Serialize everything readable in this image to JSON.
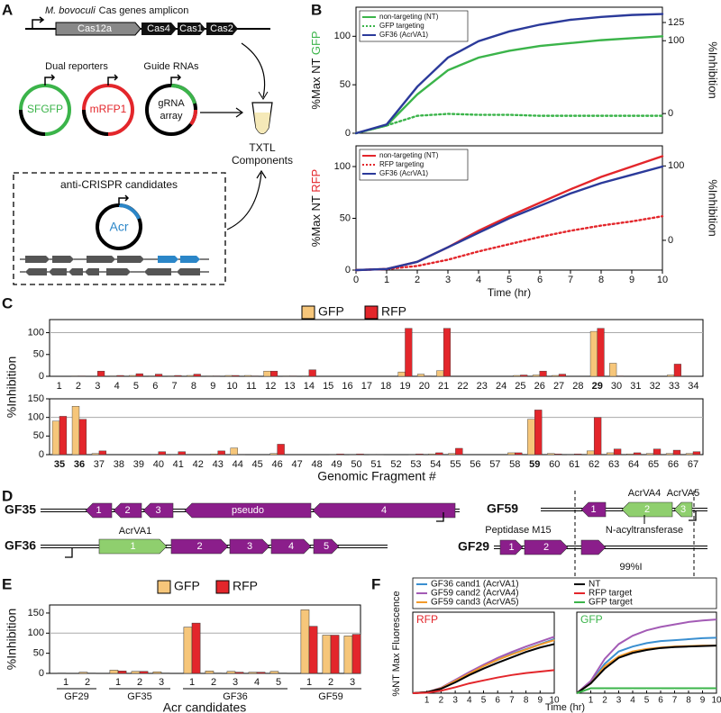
{
  "panel_labels": [
    "A",
    "B",
    "C",
    "D",
    "E",
    "F"
  ],
  "panel_a": {
    "amplicon_species": "M. bovoculi",
    "amplicon_title": "Cas genes amplicon",
    "genes": [
      "Cas12a",
      "Cas4",
      "Cas1",
      "Cas2"
    ],
    "reporters_label": "Dual reporters",
    "guides_label": "Guide RNAs",
    "plasmids": [
      "SFGFP",
      "mRFP1"
    ],
    "grna": [
      "gRNA",
      "array"
    ],
    "txtl": [
      "TXTL",
      "Components"
    ],
    "candidates_label": "anti-CRISPR candidates",
    "acr": "Acr"
  },
  "panel_d": {
    "clusters": [
      {
        "label": "GF35",
        "genes": [
          "1",
          "2",
          "3",
          "pseudo",
          "4"
        ]
      },
      {
        "label": "GF36",
        "genes": [
          "1",
          "2",
          "3",
          "4",
          "5"
        ],
        "annotations": [
          "AcrVA1"
        ]
      },
      {
        "label": "GF59",
        "genes": [
          "1",
          "2",
          "3"
        ],
        "annotations": [
          "AcrVA4",
          "AcrVA5",
          "N-acyltransferase"
        ]
      },
      {
        "label": "GF29",
        "genes": [
          "1",
          "2"
        ],
        "annotations": [
          "Peptidase M15",
          "99%I"
        ]
      }
    ]
  },
  "chart_data": [
    {
      "type": "line",
      "ylabel": {
        "text": "%Max NT ",
        "highlight": "GFP",
        "highlight_color": "#3bb44a"
      },
      "y2label": "%Inhibition",
      "x": [
        0,
        1,
        2,
        3,
        4,
        5,
        6,
        7,
        8,
        9,
        10
      ],
      "xlim": [
        0,
        10
      ],
      "ylim": [
        0,
        130
      ],
      "yticks": [
        0,
        50,
        100
      ],
      "y2lim": [
        -27,
        146
      ],
      "y2ticks": [
        0,
        100,
        125
      ],
      "legend": "upper left",
      "series": [
        {
          "name": "non-targeting (NT)",
          "color": "#3bb44a",
          "style": "solid",
          "values": [
            0,
            8,
            40,
            65,
            78,
            85,
            90,
            93,
            96,
            98,
            100
          ]
        },
        {
          "name": "GFP targeting",
          "color": "#3bb44a",
          "style": "dotted",
          "values": [
            0,
            8,
            18,
            20,
            19,
            19,
            18,
            18,
            18,
            18,
            18
          ]
        },
        {
          "name": "GF36 (AcrVA1)",
          "color": "#2b3a9a",
          "style": "solid",
          "values": [
            0,
            9,
            48,
            78,
            95,
            105,
            112,
            117,
            120,
            122,
            123
          ]
        }
      ]
    },
    {
      "type": "line",
      "ylabel": {
        "text": "%Max NT ",
        "highlight": "RFP",
        "highlight_color": "#e3262b"
      },
      "y2label": "%Inhibition",
      "xlabel": "Time (hr)",
      "x": [
        0,
        1,
        2,
        3,
        4,
        5,
        6,
        7,
        8,
        9,
        10
      ],
      "xlim": [
        0,
        10
      ],
      "xticks": [
        0,
        1,
        2,
        3,
        4,
        5,
        6,
        7,
        8,
        9,
        10
      ],
      "ylim": [
        0,
        120
      ],
      "yticks": [
        0,
        50,
        100
      ],
      "y2lim": [
        -40,
        127
      ],
      "y2ticks": [
        0,
        100
      ],
      "legend": "upper left",
      "series": [
        {
          "name": "non-targeting (NT)",
          "color": "#e3262b",
          "style": "solid",
          "values": [
            0,
            1,
            8,
            22,
            38,
            52,
            65,
            78,
            90,
            100,
            110
          ]
        },
        {
          "name": "RFP targeting",
          "color": "#e3262b",
          "style": "dotted",
          "values": [
            0,
            1,
            4,
            10,
            18,
            25,
            32,
            38,
            43,
            47,
            52
          ]
        },
        {
          "name": "GF36 (AcrVA1)",
          "color": "#2b3a9a",
          "style": "solid",
          "values": [
            0,
            1,
            8,
            22,
            36,
            50,
            62,
            74,
            84,
            92,
            100
          ]
        }
      ]
    },
    {
      "type": "bar",
      "series_names": [
        "GFP",
        "RFP"
      ],
      "colors": [
        "#f6c67a",
        "#e3262b"
      ],
      "ylabel": "%Inhibition",
      "xlabel": "Genomic Fragment #",
      "refline": 100,
      "rows": [
        {
          "categories": [
            "1",
            "2",
            "3",
            "4",
            "5",
            "6",
            "7",
            "8",
            "9",
            "10",
            "11",
            "12",
            "13",
            "14",
            "15",
            "16",
            "17",
            "18",
            "19",
            "20",
            "21",
            "22",
            "23",
            "24",
            "25",
            "26",
            "27",
            "28",
            "29",
            "30",
            "31",
            "32",
            "33",
            "34"
          ],
          "ylim": [
            0,
            130
          ],
          "yticks": [
            0,
            50,
            100
          ],
          "bold_indices": [
            28
          ],
          "values": [
            [
              0,
              1,
              0,
              1,
              2,
              1,
              1,
              2,
              1,
              2,
              2,
              12,
              1,
              1,
              0,
              0,
              0,
              0,
              10,
              5,
              13,
              0,
              0,
              0,
              2,
              3,
              2,
              0,
              103,
              30,
              0,
              0,
              3,
              0
            ],
            [
              0,
              1,
              12,
              2,
              6,
              5,
              2,
              5,
              1,
              2,
              1,
              12,
              1,
              15,
              0,
              0,
              0,
              0,
              110,
              1,
              110,
              0,
              0,
              0,
              3,
              12,
              5,
              0,
              110,
              1,
              0,
              0,
              28,
              0
            ]
          ]
        },
        {
          "categories": [
            "35",
            "36",
            "37",
            "38",
            "39",
            "40",
            "41",
            "42",
            "43",
            "44",
            "45",
            "46",
            "47",
            "48",
            "49",
            "50",
            "51",
            "52",
            "53",
            "54",
            "55",
            "56",
            "57",
            "58",
            "59",
            "60",
            "61",
            "62",
            "63",
            "64",
            "65",
            "66",
            "67"
          ],
          "ylim": [
            0,
            150
          ],
          "yticks": [
            0,
            50,
            100,
            150
          ],
          "bold_indices": [
            0,
            1,
            24
          ],
          "values": [
            [
              90,
              130,
              3,
              0,
              0,
              1,
              1,
              0,
              2,
              18,
              0,
              3,
              0,
              0,
              1,
              1,
              1,
              0,
              1,
              2,
              3,
              0,
              0,
              5,
              95,
              3,
              1,
              10,
              5,
              2,
              3,
              3,
              3
            ],
            [
              103,
              95,
              10,
              0,
              0,
              8,
              8,
              0,
              10,
              1,
              0,
              28,
              0,
              0,
              2,
              2,
              1,
              0,
              2,
              5,
              17,
              0,
              0,
              5,
              120,
              2,
              2,
              100,
              15,
              5,
              15,
              12,
              8
            ]
          ]
        }
      ]
    },
    {
      "type": "bar",
      "series_names": [
        "GFP",
        "RFP"
      ],
      "colors": [
        "#f6c67a",
        "#e3262b"
      ],
      "ylabel": "%Inhibition",
      "xlabel": "Acr candidates",
      "refline": 100,
      "ylim": [
        0,
        170
      ],
      "yticks": [
        0,
        50,
        100,
        150
      ],
      "groups": [
        {
          "label": "GF29",
          "categories": [
            "1",
            "2"
          ],
          "values": [
            [
              1,
              3
            ],
            [
              0,
              1
            ]
          ]
        },
        {
          "label": "GF35",
          "categories": [
            "1",
            "2",
            "3"
          ],
          "values": [
            [
              8,
              5,
              4
            ],
            [
              6,
              5,
              1
            ]
          ]
        },
        {
          "label": "GF36",
          "categories": [
            "1",
            "2",
            "3",
            "4",
            "5"
          ],
          "values": [
            [
              115,
              6,
              5,
              3,
              5
            ],
            [
              125,
              1,
              3,
              3,
              1
            ]
          ]
        },
        {
          "label": "GF59",
          "categories": [
            "1",
            "2",
            "3"
          ],
          "values": [
            [
              158,
              95,
              93
            ],
            [
              117,
              95,
              97
            ]
          ]
        }
      ]
    },
    {
      "type": "line",
      "ylabel": "%NT Max Fluorescence",
      "xlabel": "Time (hr)",
      "x": [
        0,
        1,
        2,
        3,
        4,
        5,
        6,
        7,
        8,
        9,
        10
      ],
      "xlim": [
        0,
        10
      ],
      "xticks": [
        1,
        2,
        3,
        4,
        5,
        6,
        7,
        8,
        9,
        10
      ],
      "ylim": [
        0,
        165
      ],
      "series": [
        {
          "name": "GF36 cand1 (AcrVA1)",
          "color": "#3a8fd0"
        },
        {
          "name": "GF59 cand2 (AcrVA4)",
          "color": "#a35bb5"
        },
        {
          "name": "GF59 cand3 (AcrVA5)",
          "color": "#f39a2b"
        },
        {
          "name": "NT",
          "color": "#000000"
        },
        {
          "name": "RFP target",
          "color": "#e3262b"
        },
        {
          "name": "GFP target",
          "color": "#3bb44a"
        }
      ],
      "panels": [
        {
          "title": "RFP",
          "title_color": "#e3262b",
          "values": [
            [
              0,
              2,
              10,
              25,
              40,
              55,
              68,
              80,
              90,
              100,
              110
            ],
            [
              0,
              2,
              11,
              27,
              43,
              58,
              72,
              84,
              95,
              105,
              115
            ],
            [
              0,
              2,
              10,
              25,
              40,
              55,
              68,
              79,
              89,
              99,
              108
            ],
            [
              0,
              2,
              9,
              22,
              37,
              50,
              62,
              73,
              84,
              93,
              100
            ],
            [
              0,
              1,
              5,
              12,
              20,
              26,
              32,
              37,
              41,
              44,
              47
            ],
            null
          ]
        },
        {
          "title": "GFP",
          "title_color": "#3bb44a",
          "values": [
            [
              0,
              22,
              60,
              85,
              95,
              102,
              106,
              108,
              110,
              112,
              113
            ],
            [
              0,
              25,
              70,
              100,
              117,
              128,
              135,
              140,
              145,
              148,
              150
            ],
            [
              0,
              20,
              55,
              75,
              85,
              90,
              93,
              95,
              96,
              97,
              97
            ],
            [
              0,
              20,
              50,
              72,
              82,
              88,
              92,
              94,
              95,
              96,
              97
            ],
            null,
            [
              0,
              10,
              10,
              10,
              10,
              10,
              10,
              10,
              10,
              10,
              10
            ]
          ]
        }
      ]
    }
  ]
}
